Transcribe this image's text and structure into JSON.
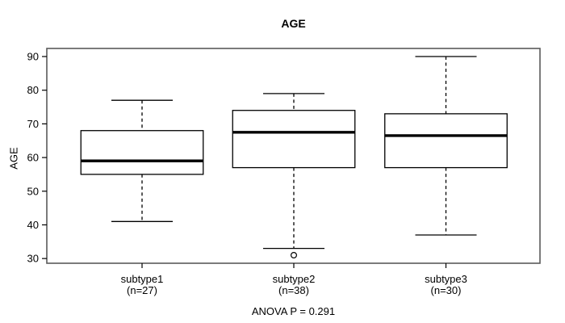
{
  "title": "AGE",
  "chart_data": {
    "type": "boxplot",
    "title": "AGE",
    "ylabel": "AGE",
    "annotation": "ANOVA P = 0.291",
    "ylim": [
      28.6,
      92.4
    ],
    "yticks": [
      30,
      40,
      50,
      60,
      70,
      80,
      90
    ],
    "grid": false,
    "categories": [
      {
        "label": "subtype1",
        "sublabel": "(n=27)"
      },
      {
        "label": "subtype2",
        "sublabel": "(n=38)"
      },
      {
        "label": "subtype3",
        "sublabel": "(n=30)"
      }
    ],
    "series": [
      {
        "name": "subtype1",
        "n": 27,
        "min": 41,
        "q1": 55,
        "median": 59,
        "q3": 68,
        "max": 77,
        "outliers": []
      },
      {
        "name": "subtype2",
        "n": 38,
        "min": 33,
        "q1": 57,
        "median": 67.5,
        "q3": 74,
        "max": 79,
        "outliers": [
          31
        ]
      },
      {
        "name": "subtype3",
        "n": 30,
        "min": 37,
        "q1": 57,
        "median": 66.5,
        "q3": 73,
        "max": 90,
        "outliers": []
      }
    ],
    "colors": {
      "line": "#000000",
      "frame": "#5a5a5a",
      "box_fill": "#ffffff",
      "background": "#ffffff"
    }
  }
}
